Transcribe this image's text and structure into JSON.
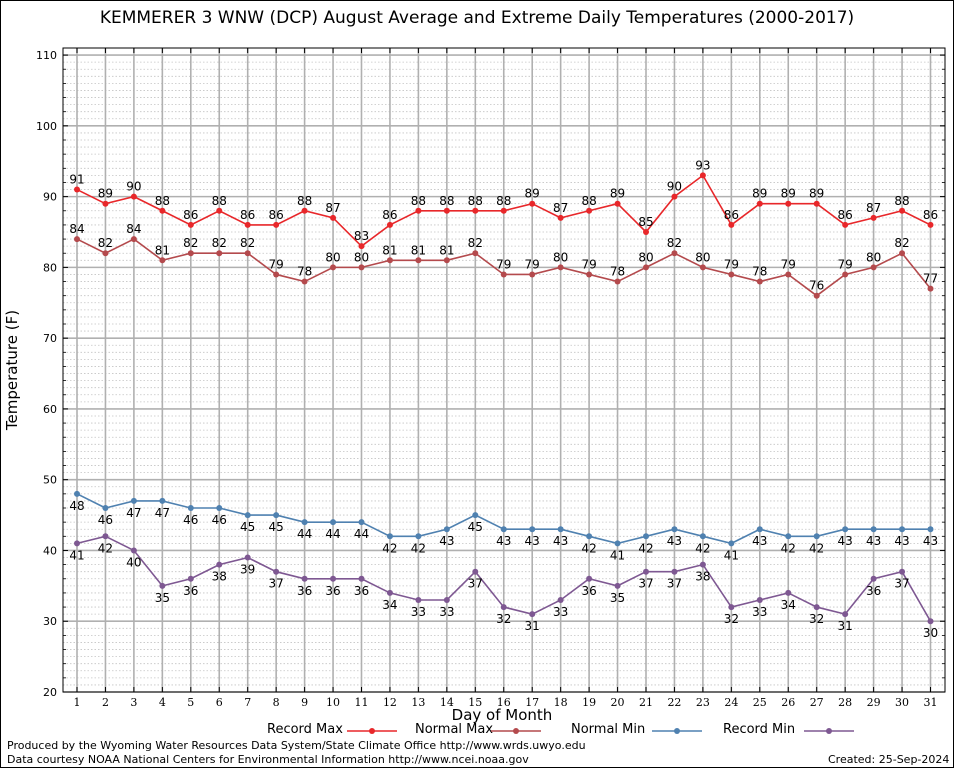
{
  "chart_data": {
    "type": "line",
    "title": "KEMMERER 3 WNW (DCP) August Average and Extreme Daily Temperatures (2000-2017)",
    "xlabel": "Day of Month",
    "ylabel": "Temperature (F)",
    "xlim": [
      1,
      31
    ],
    "ylim": [
      20,
      111
    ],
    "y_ticks": [
      20,
      30,
      40,
      50,
      60,
      70,
      80,
      90,
      100,
      110
    ],
    "x": [
      1,
      2,
      3,
      4,
      5,
      6,
      7,
      8,
      9,
      10,
      11,
      12,
      13,
      14,
      15,
      16,
      17,
      18,
      19,
      20,
      21,
      22,
      23,
      24,
      25,
      26,
      27,
      28,
      29,
      30,
      31
    ],
    "grid": true,
    "legend_position": "bottom",
    "series": [
      {
        "name": "Record Max",
        "color": "#e8272a",
        "label_pos": "above",
        "values": [
          91,
          89,
          90,
          88,
          86,
          88,
          86,
          86,
          88,
          87,
          83,
          86,
          88,
          88,
          88,
          88,
          89,
          87,
          88,
          89,
          85,
          90,
          93,
          86,
          89,
          89,
          89,
          86,
          87,
          88,
          86
        ]
      },
      {
        "name": "Normal Max",
        "color": "#b44a4d",
        "label_pos": "above",
        "values": [
          84,
          82,
          84,
          81,
          82,
          82,
          82,
          79,
          78,
          80,
          80,
          81,
          81,
          81,
          82,
          79,
          79,
          80,
          79,
          78,
          80,
          82,
          80,
          79,
          78,
          79,
          76,
          79,
          80,
          82,
          77
        ]
      },
      {
        "name": "Normal Min",
        "color": "#4f81b0",
        "label_pos": "below",
        "values": [
          48,
          46,
          47,
          47,
          46,
          46,
          45,
          45,
          44,
          44,
          44,
          42,
          42,
          43,
          45,
          43,
          43,
          43,
          42,
          41,
          42,
          43,
          42,
          41,
          43,
          42,
          42,
          43,
          43,
          43,
          43
        ]
      },
      {
        "name": "Record Min",
        "color": "#7e5892",
        "label_pos": "below",
        "values": [
          41,
          42,
          40,
          35,
          36,
          38,
          39,
          37,
          36,
          36,
          36,
          34,
          33,
          33,
          37,
          32,
          31,
          33,
          36,
          35,
          37,
          37,
          38,
          32,
          33,
          34,
          32,
          31,
          36,
          37,
          30
        ]
      }
    ]
  },
  "footer": {
    "produced_by": "Produced by the Wyoming Water Resources Data System/State Climate Office http://www.wrds.uwyo.edu",
    "data_courtesy": "Data courtesy NOAA National Centers for Environmental Information http://www.ncei.noaa.gov",
    "created": "Created:  25-Sep-2024"
  }
}
